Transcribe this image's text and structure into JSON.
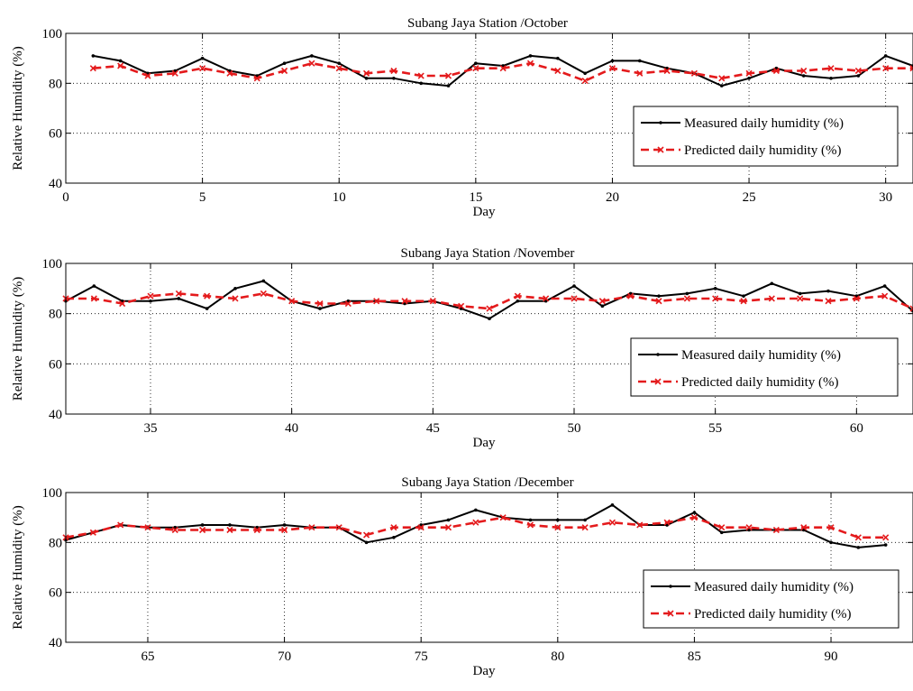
{
  "chart_data": [
    {
      "type": "line",
      "title": "Subang Jaya Station /October",
      "xlabel": "Day",
      "ylabel": "Relative Humidity (%)",
      "xlim": [
        0,
        31
      ],
      "ylim": [
        40,
        100
      ],
      "xticks": [
        0,
        5,
        10,
        15,
        20,
        25,
        30
      ],
      "yticks": [
        40,
        60,
        80,
        100
      ],
      "grid": true,
      "legend_position": "bottom-right",
      "series": [
        {
          "name": "Measured daily humidity (%)",
          "color": "#000000",
          "style": "solid",
          "marker": "dot",
          "x": [
            1,
            2,
            3,
            4,
            5,
            6,
            7,
            8,
            9,
            10,
            11,
            12,
            13,
            14,
            15,
            16,
            17,
            18,
            19,
            20,
            21,
            22,
            23,
            24,
            25,
            26,
            27,
            28,
            29,
            30,
            31
          ],
          "y": [
            91,
            89,
            84,
            85,
            90,
            85,
            83,
            88,
            91,
            88,
            82,
            82,
            80,
            79,
            88,
            87,
            91,
            90,
            84,
            89,
            89,
            86,
            84,
            79,
            82,
            86,
            83,
            82,
            83,
            91,
            87
          ]
        },
        {
          "name": "Predicted daily humidity (%)",
          "color": "#e41a1c",
          "style": "dashed",
          "marker": "x",
          "x": [
            1,
            2,
            3,
            4,
            5,
            6,
            7,
            8,
            9,
            10,
            11,
            12,
            13,
            14,
            15,
            16,
            17,
            18,
            19,
            20,
            21,
            22,
            23,
            24,
            25,
            26,
            27,
            28,
            29,
            30,
            31
          ],
          "y": [
            86,
            87,
            83,
            84,
            86,
            84,
            82,
            85,
            88,
            86,
            84,
            85,
            83,
            83,
            86,
            86,
            88,
            85,
            81,
            86,
            84,
            85,
            84,
            82,
            84,
            85,
            85,
            86,
            85,
            86,
            86
          ]
        }
      ]
    },
    {
      "type": "line",
      "title": "Subang Jaya Station /November",
      "xlabel": "Day",
      "ylabel": "Relative Humidity (%)",
      "xlim": [
        32,
        62
      ],
      "ylim": [
        40,
        100
      ],
      "xticks": [
        35,
        40,
        45,
        50,
        55,
        60
      ],
      "yticks": [
        40,
        60,
        80,
        100
      ],
      "grid": true,
      "legend_position": "bottom-right",
      "series": [
        {
          "name": "Measured daily humidity (%)",
          "color": "#000000",
          "style": "solid",
          "marker": "dot",
          "x": [
            32,
            33,
            34,
            35,
            36,
            37,
            38,
            39,
            40,
            41,
            42,
            43,
            44,
            45,
            46,
            47,
            48,
            49,
            50,
            51,
            52,
            53,
            54,
            55,
            56,
            57,
            58,
            59,
            60,
            61,
            62
          ],
          "y": [
            85,
            91,
            85,
            85,
            86,
            82,
            90,
            93,
            85,
            82,
            85,
            85,
            84,
            85,
            82,
            78,
            85,
            85,
            91,
            83,
            88,
            87,
            88,
            90,
            87,
            92,
            88,
            89,
            87,
            91,
            81
          ]
        },
        {
          "name": "Predicted daily humidity (%)",
          "color": "#e41a1c",
          "style": "dashed",
          "marker": "x",
          "x": [
            32,
            33,
            34,
            35,
            36,
            37,
            38,
            39,
            40,
            41,
            42,
            43,
            44,
            45,
            46,
            47,
            48,
            49,
            50,
            51,
            52,
            53,
            54,
            55,
            56,
            57,
            58,
            59,
            60,
            61,
            62
          ],
          "y": [
            86,
            86,
            84,
            87,
            88,
            87,
            86,
            88,
            85,
            84,
            84,
            85,
            85,
            85,
            83,
            82,
            87,
            86,
            86,
            85,
            87,
            85,
            86,
            86,
            85,
            86,
            86,
            85,
            86,
            87,
            82
          ]
        }
      ]
    },
    {
      "type": "line",
      "title": "Subang Jaya Station /December",
      "xlabel": "Day",
      "ylabel": "Relative Humidity (%)",
      "xlim": [
        62,
        93
      ],
      "ylim": [
        40,
        100
      ],
      "xticks": [
        65,
        70,
        75,
        80,
        85,
        90
      ],
      "yticks": [
        40,
        60,
        80,
        100
      ],
      "grid": true,
      "legend_position": "bottom-right",
      "series": [
        {
          "name": "Measured daily humidity (%)",
          "color": "#000000",
          "style": "solid",
          "marker": "dot",
          "x": [
            62,
            63,
            64,
            65,
            66,
            67,
            68,
            69,
            70,
            71,
            72,
            73,
            74,
            75,
            76,
            77,
            78,
            79,
            80,
            81,
            82,
            83,
            84,
            85,
            86,
            87,
            88,
            89,
            90,
            91,
            92
          ],
          "y": [
            81,
            84,
            87,
            86,
            86,
            87,
            87,
            86,
            87,
            86,
            86,
            80,
            82,
            87,
            89,
            93,
            90,
            89,
            89,
            89,
            95,
            87,
            87,
            92,
            84,
            85,
            85,
            85,
            80,
            78,
            79
          ]
        },
        {
          "name": "Predicted daily humidity (%)",
          "color": "#e41a1c",
          "style": "dashed",
          "marker": "x",
          "x": [
            62,
            63,
            64,
            65,
            66,
            67,
            68,
            69,
            70,
            71,
            72,
            73,
            74,
            75,
            76,
            77,
            78,
            79,
            80,
            81,
            82,
            83,
            84,
            85,
            86,
            87,
            88,
            89,
            90,
            91,
            92
          ],
          "y": [
            82,
            84,
            87,
            86,
            85,
            85,
            85,
            85,
            85,
            86,
            86,
            83,
            86,
            86,
            86,
            88,
            90,
            87,
            86,
            86,
            88,
            87,
            88,
            90,
            86,
            86,
            85,
            86,
            86,
            82,
            82
          ]
        }
      ]
    }
  ]
}
